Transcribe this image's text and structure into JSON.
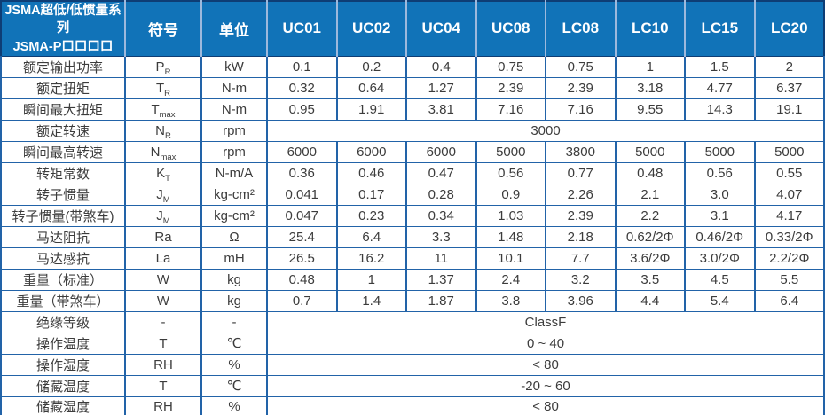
{
  "table": {
    "header": {
      "title_line1": "JSMA超低/低惯量系列",
      "title_line2": "JSMA-P口口口口",
      "symbol_col": "符号",
      "unit_col": "单位",
      "models": [
        "UC01",
        "UC02",
        "UC04",
        "UC08",
        "LC08",
        "LC10",
        "LC15",
        "LC20"
      ]
    },
    "rows": [
      {
        "label": "额定输出功率",
        "symbol": "P",
        "sub": "R",
        "unit": "kW",
        "values": [
          "0.1",
          "0.2",
          "0.4",
          "0.75",
          "0.75",
          "1",
          "1.5",
          "2"
        ]
      },
      {
        "label": "额定扭矩",
        "symbol": "T",
        "sub": "R",
        "unit": "N-m",
        "values": [
          "0.32",
          "0.64",
          "1.27",
          "2.39",
          "2.39",
          "3.18",
          "4.77",
          "6.37"
        ]
      },
      {
        "label": "瞬间最大扭矩",
        "symbol": "T",
        "sub": "max",
        "unit": "N-m",
        "values": [
          "0.95",
          "1.91",
          "3.81",
          "7.16",
          "7.16",
          "9.55",
          "14.3",
          "19.1"
        ]
      },
      {
        "label": "额定转速",
        "symbol": "N",
        "sub": "R",
        "unit": "rpm",
        "merged": "3000"
      },
      {
        "label": "瞬间最高转速",
        "symbol": "N",
        "sub": "max",
        "unit": "rpm",
        "values": [
          "6000",
          "6000",
          "6000",
          "5000",
          "3800",
          "5000",
          "5000",
          "5000"
        ]
      },
      {
        "label": "转矩常数",
        "symbol": "K",
        "sub": "T",
        "unit": "N-m/A",
        "values": [
          "0.36",
          "0.46",
          "0.47",
          "0.56",
          "0.77",
          "0.48",
          "0.56",
          "0.55"
        ]
      },
      {
        "label": "转子惯量",
        "symbol": "J",
        "sub": "M",
        "unit": "kg-cm²",
        "values": [
          "0.041",
          "0.17",
          "0.28",
          "0.9",
          "2.26",
          "2.1",
          "3.0",
          "4.07"
        ]
      },
      {
        "label": "转子惯量(带煞车)",
        "symbol": "J",
        "sub": "M",
        "unit": "kg-cm²",
        "values": [
          "0.047",
          "0.23",
          "0.34",
          "1.03",
          "2.39",
          "2.2",
          "3.1",
          "4.17"
        ]
      },
      {
        "label": "马达阻抗",
        "symbol": "Ra",
        "sub": "",
        "unit": "Ω",
        "values": [
          "25.4",
          "6.4",
          "3.3",
          "1.48",
          "2.18",
          "0.62/2Φ",
          "0.46/2Φ",
          "0.33/2Φ"
        ]
      },
      {
        "label": "马达感抗",
        "symbol": "La",
        "sub": "",
        "unit": "mH",
        "values": [
          "26.5",
          "16.2",
          "11",
          "10.1",
          "7.7",
          "3.6/2Φ",
          "3.0/2Φ",
          "2.2/2Φ"
        ]
      },
      {
        "label": "重量（标准）",
        "symbol": "W",
        "sub": "",
        "unit": "kg",
        "values": [
          "0.48",
          "1",
          "1.37",
          "2.4",
          "3.2",
          "3.5",
          "4.5",
          "5.5"
        ]
      },
      {
        "label": "重量（带煞车）",
        "symbol": "W",
        "sub": "",
        "unit": "kg",
        "values": [
          "0.7",
          "1.4",
          "1.87",
          "3.8",
          "3.96",
          "4.4",
          "5.4",
          "6.4"
        ]
      },
      {
        "label": "绝缘等级",
        "symbol": "-",
        "sub": "",
        "unit": "-",
        "merged": "ClassF"
      },
      {
        "label": "操作温度",
        "symbol": "T",
        "sub": "",
        "unit": "℃",
        "merged": "0 ~ 40"
      },
      {
        "label": "操作湿度",
        "symbol": "RH",
        "sub": "",
        "unit": "%",
        "merged": "< 80"
      },
      {
        "label": "储藏温度",
        "symbol": "T",
        "sub": "",
        "unit": "℃",
        "merged": "-20 ~ 60"
      },
      {
        "label": "储藏湿度",
        "symbol": "RH",
        "sub": "",
        "unit": "%",
        "merged": "< 80"
      }
    ],
    "colors": {
      "header_bg": "#1173b8",
      "header_divider": "#9db9dd",
      "grid": "#2263a8",
      "outer_border": "#0e3d75",
      "body_text": "#3c3c3c",
      "header_text": "#ffffff"
    }
  }
}
